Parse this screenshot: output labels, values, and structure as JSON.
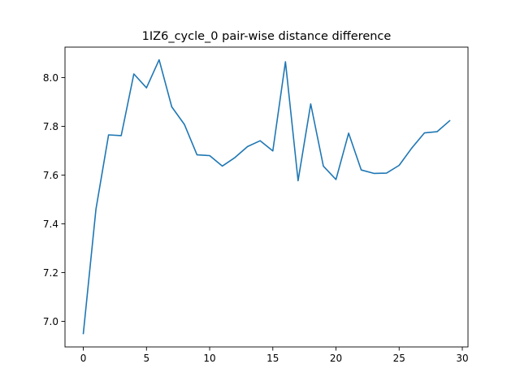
{
  "chart_data": {
    "type": "line",
    "title": "1IZ6_cycle_0 pair-wise distance difference",
    "xlabel": "",
    "ylabel": "",
    "xlim": [
      -1.45,
      30.45
    ],
    "ylim": [
      6.895,
      8.125
    ],
    "xticks": [
      0,
      5,
      10,
      15,
      20,
      25,
      30
    ],
    "yticks": [
      7.0,
      7.2,
      7.4,
      7.6,
      7.8,
      8.0
    ],
    "xtick_labels": [
      "0",
      "5",
      "10",
      "15",
      "20",
      "25",
      "30"
    ],
    "ytick_labels": [
      "7.0",
      "7.2",
      "7.4",
      "7.6",
      "7.8",
      "8.0"
    ],
    "grid": false,
    "legend": "none",
    "series": [
      {
        "color": "#1f77b4",
        "x": [
          0,
          1,
          2,
          3,
          4,
          5,
          6,
          7,
          8,
          9,
          10,
          11,
          12,
          13,
          14,
          15,
          16,
          17,
          18,
          19,
          20,
          21,
          22,
          23,
          24,
          25,
          26,
          27,
          28,
          29
        ],
        "y": [
          6.95,
          7.46,
          7.765,
          7.762,
          8.015,
          7.958,
          8.073,
          7.88,
          7.808,
          7.683,
          7.68,
          7.637,
          7.672,
          7.717,
          7.741,
          7.699,
          8.065,
          7.577,
          7.892,
          7.637,
          7.582,
          7.772,
          7.621,
          7.607,
          7.608,
          7.64,
          7.711,
          7.773,
          7.778,
          7.823
        ]
      }
    ]
  }
}
